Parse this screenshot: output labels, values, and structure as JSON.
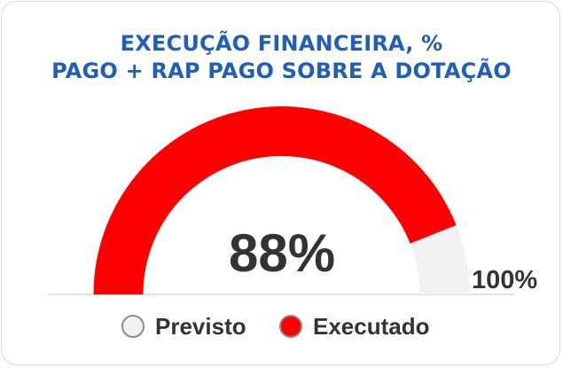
{
  "title": {
    "line1": "EXECUÇÃO FINANCEIRA, %",
    "line2": "PAGO + RAP PAGO SOBRE A DOTAÇÃO"
  },
  "chart_data": {
    "type": "gauge",
    "value": 88,
    "max": 100,
    "value_label": "88%",
    "max_label": "100%",
    "series": [
      {
        "name": "Previsto",
        "value": 100,
        "color": "#f2f2f2"
      },
      {
        "name": "Executado",
        "value": 88,
        "color": "#ff0000"
      }
    ]
  },
  "legend": [
    {
      "label": "Previsto",
      "color": "#f2f2f2"
    },
    {
      "label": "Executado",
      "color": "#ff0000"
    }
  ],
  "colors": {
    "title": "#1f5fb8",
    "text": "#333333",
    "previsto": "#f2f2f2",
    "executado": "#ff0000"
  }
}
